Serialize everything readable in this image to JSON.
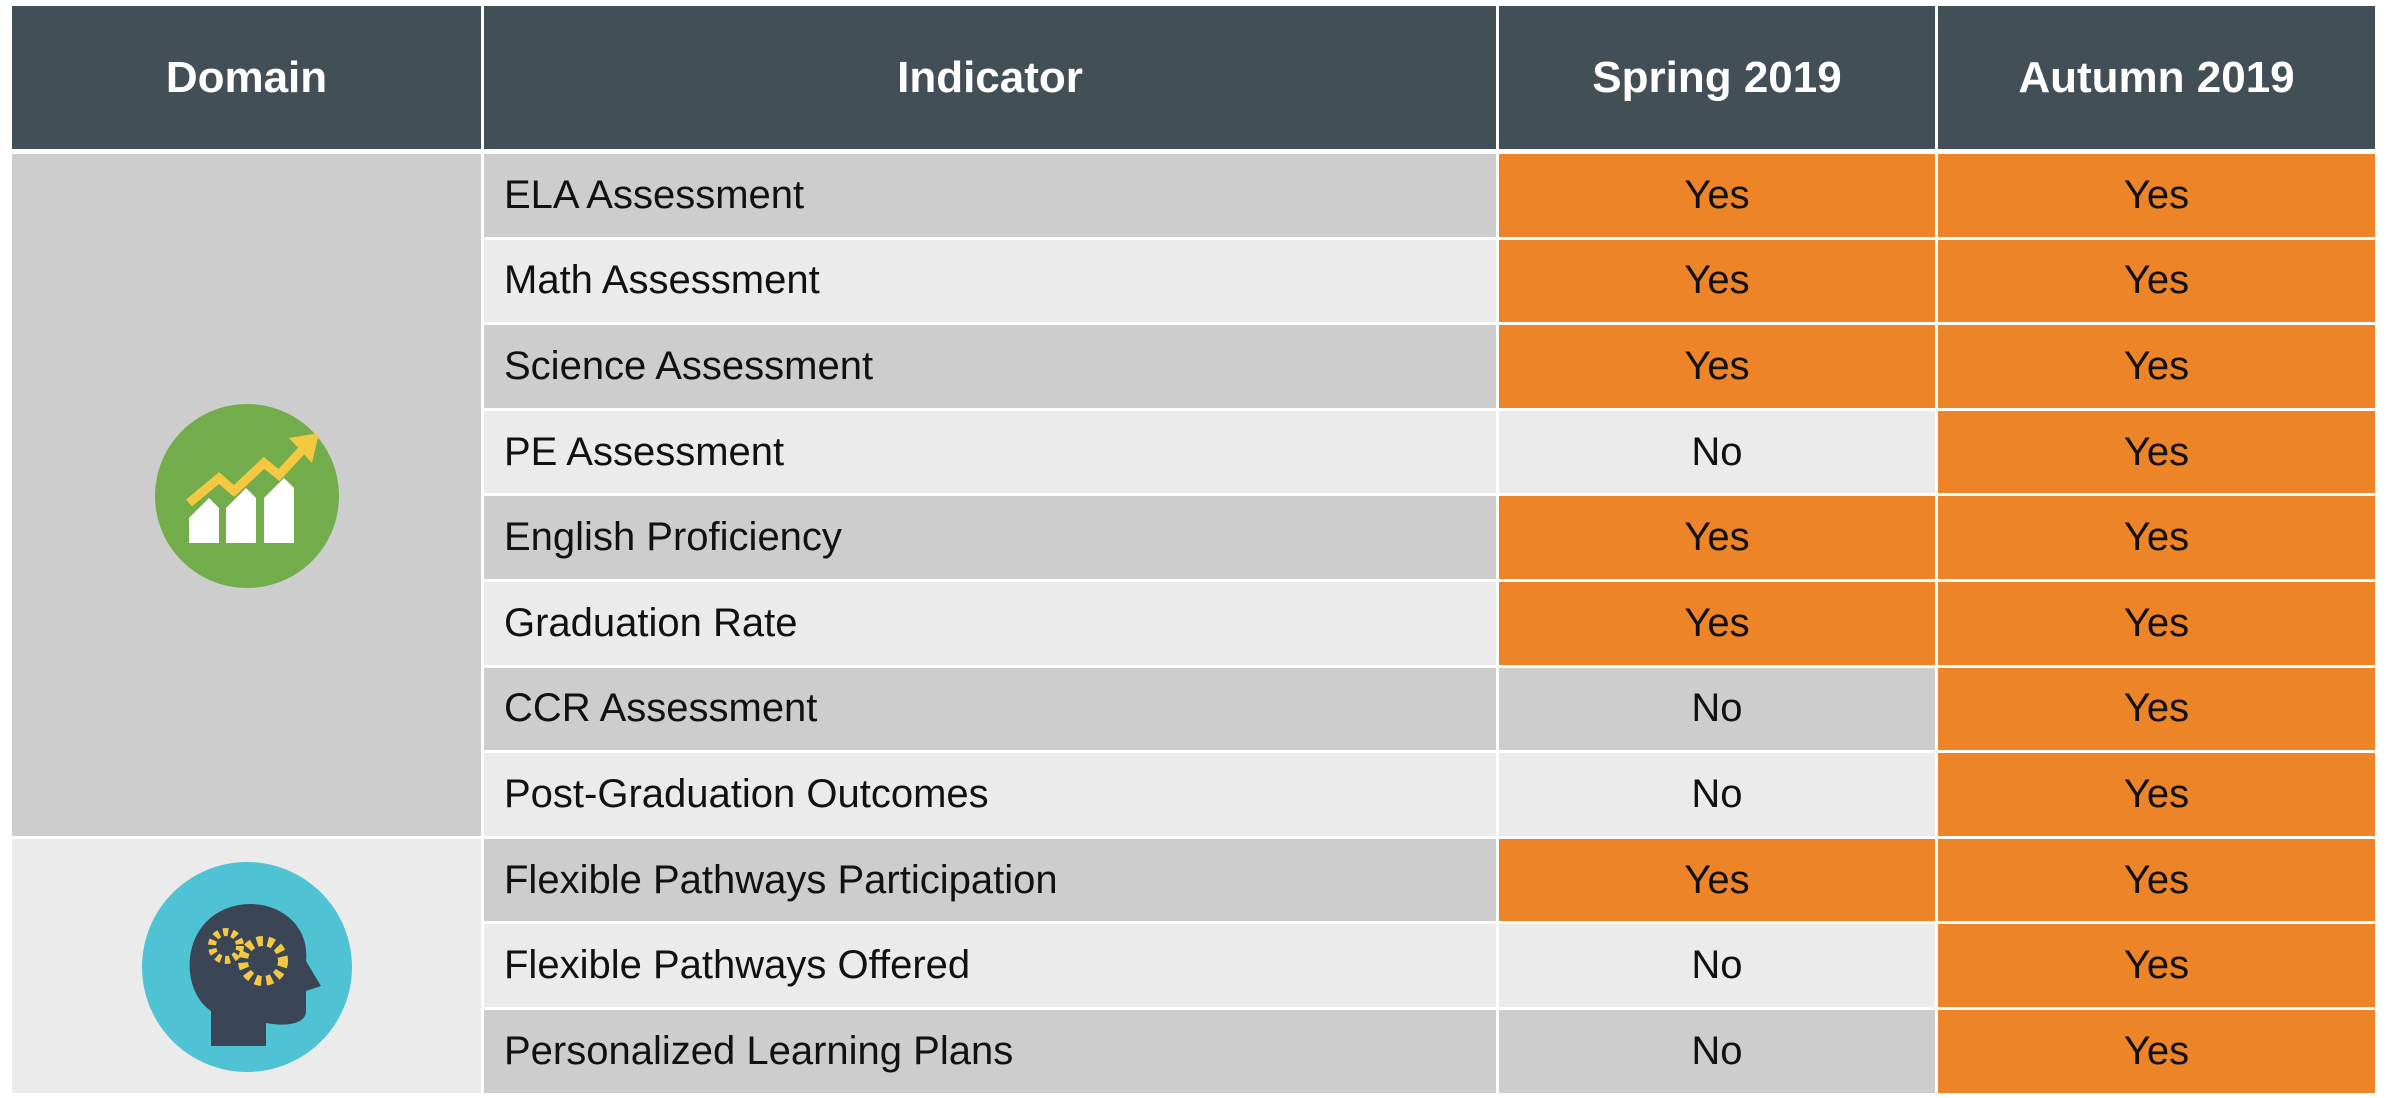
{
  "table": {
    "header": [
      "Domain",
      "Indicator",
      "Spring 2019",
      "Autumn 2019"
    ],
    "highlight_color": "#ed8427",
    "groups": [
      {
        "rows": [
          {
            "indicator": "ELA Assessment",
            "spring": {
              "text": "Yes",
              "highlight": true
            },
            "autumn": {
              "text": "Yes",
              "highlight": true
            }
          },
          {
            "indicator": "Math Assessment",
            "spring": {
              "text": "Yes",
              "highlight": true
            },
            "autumn": {
              "text": "Yes",
              "highlight": true
            }
          },
          {
            "indicator": "Science Assessment",
            "spring": {
              "text": "Yes",
              "highlight": true
            },
            "autumn": {
              "text": "Yes",
              "highlight": true
            }
          },
          {
            "indicator": "PE Assessment",
            "spring": {
              "text": "No",
              "highlight": false
            },
            "autumn": {
              "text": "Yes",
              "highlight": true
            }
          },
          {
            "indicator": "English Proficiency",
            "spring": {
              "text": "Yes",
              "highlight": true
            },
            "autumn": {
              "text": "Yes",
              "highlight": true
            }
          },
          {
            "indicator": "Graduation Rate",
            "spring": {
              "text": "Yes",
              "highlight": true
            },
            "autumn": {
              "text": "Yes",
              "highlight": true
            }
          },
          {
            "indicator": "CCR Assessment",
            "spring": {
              "text": "No",
              "highlight": false
            },
            "autumn": {
              "text": "Yes",
              "highlight": true
            }
          },
          {
            "indicator": "Post-Graduation Outcomes",
            "spring": {
              "text": "No",
              "highlight": false
            },
            "autumn": {
              "text": "Yes",
              "highlight": true
            }
          }
        ]
      },
      {
        "rows": [
          {
            "indicator": "Flexible Pathways Participation",
            "spring": {
              "text": "Yes",
              "highlight": true
            },
            "autumn": {
              "text": "Yes",
              "highlight": true
            }
          },
          {
            "indicator": "Flexible Pathways Offered",
            "spring": {
              "text": "No",
              "highlight": false
            },
            "autumn": {
              "text": "Yes",
              "highlight": true
            }
          },
          {
            "indicator": "Personalized Learning Plans",
            "spring": {
              "text": "No",
              "highlight": false
            },
            "autumn": {
              "text": "Yes",
              "highlight": true
            }
          }
        ]
      }
    ]
  }
}
